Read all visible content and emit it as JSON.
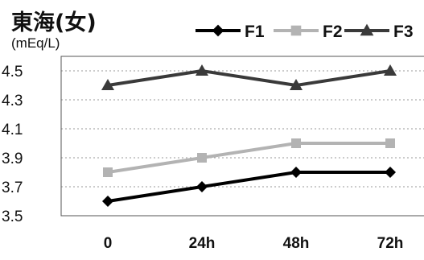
{
  "chart_data": {
    "type": "line",
    "title": "東海(女)",
    "ylabel": "(mEq/L)",
    "xlabel": "",
    "categories": [
      "0",
      "24h",
      "48h",
      "72h"
    ],
    "yticks": [
      "4.5",
      "4.3",
      "4.1",
      "3.9",
      "3.7",
      "3.5"
    ],
    "ylim": [
      3.5,
      4.6
    ],
    "grid": "horizontal dotted",
    "legend_position": "top-right",
    "series": [
      {
        "name": "F1",
        "values": [
          3.6,
          3.7,
          3.8,
          3.8
        ],
        "color": "#000000",
        "marker": "diamond"
      },
      {
        "name": "F2",
        "values": [
          3.8,
          3.9,
          4.0,
          4.0
        ],
        "color": "#b3b3b3",
        "marker": "square"
      },
      {
        "name": "F3",
        "values": [
          4.4,
          4.5,
          4.4,
          4.5
        ],
        "color": "#3a3a3a",
        "marker": "triangle"
      }
    ]
  }
}
